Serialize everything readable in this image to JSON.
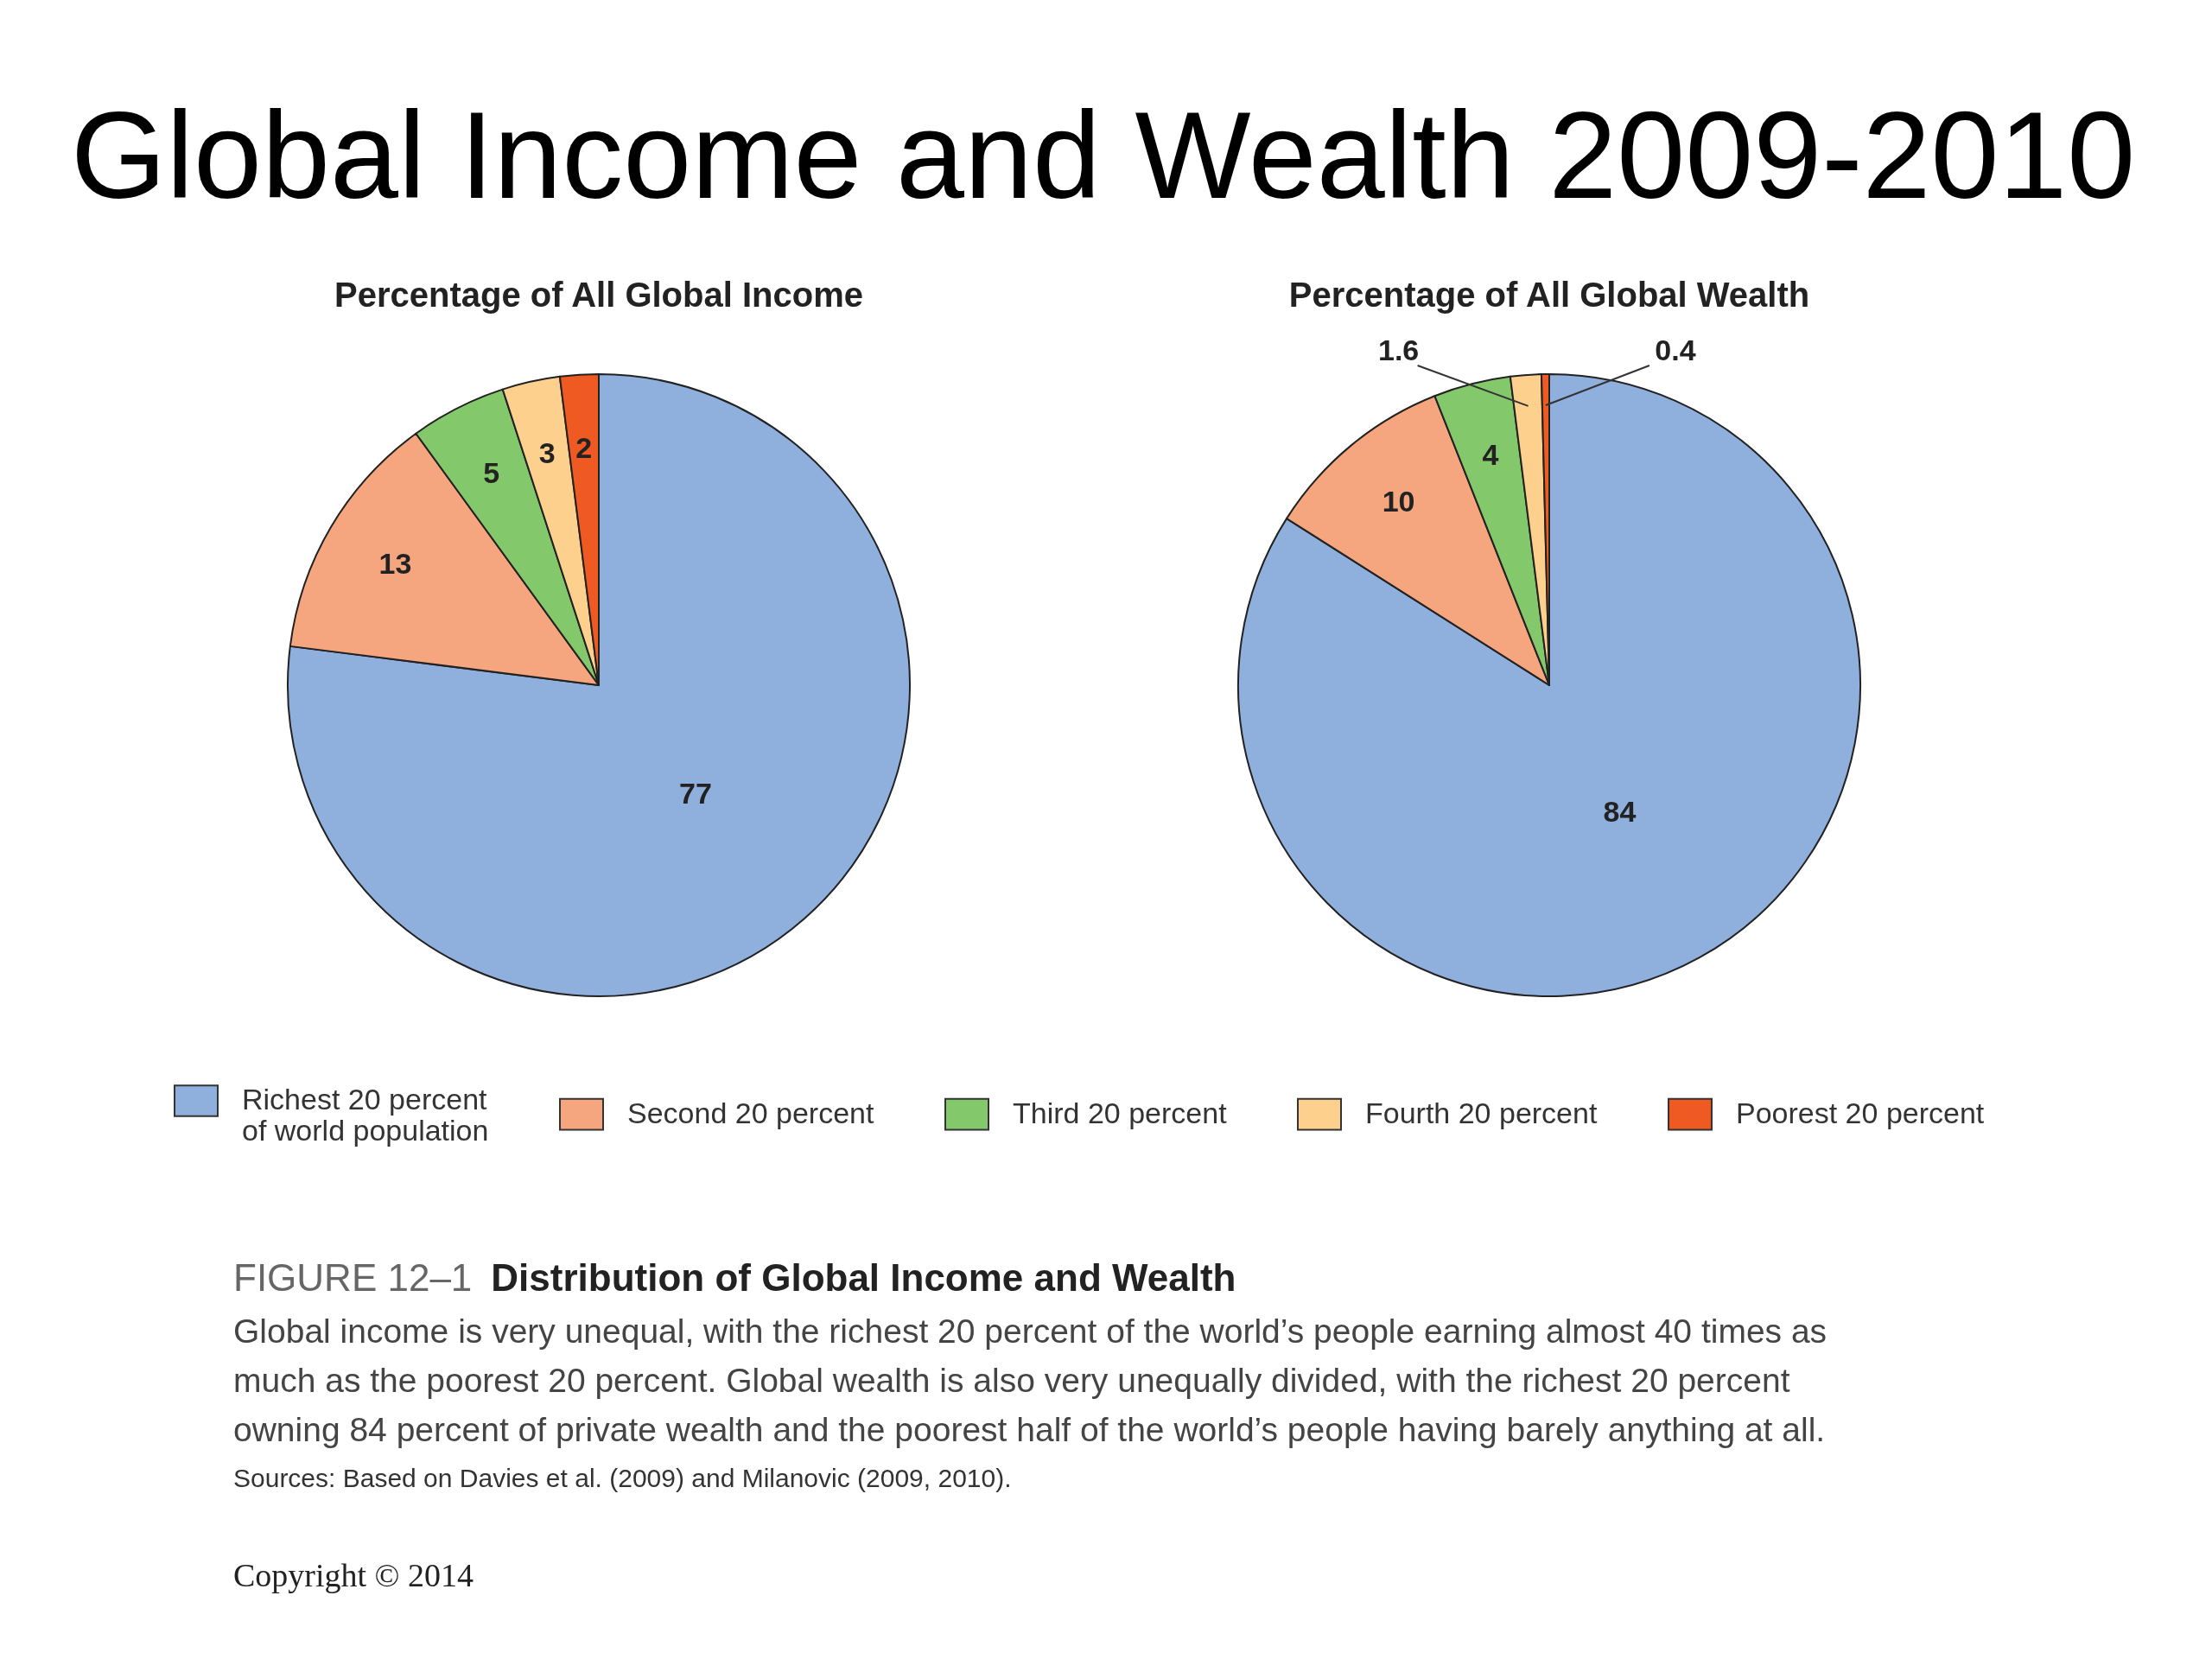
{
  "chart_data": {
    "type": "pie",
    "title": "Global Income and Wealth 2009-2010",
    "categories": [
      "Richest 20 percent of world population",
      "Second 20 percent",
      "Third 20 percent",
      "Fourth 20 percent",
      "Poorest 20 percent"
    ],
    "colors": [
      "#8fb0dc",
      "#f6a67e",
      "#84c86c",
      "#fdd08e",
      "#ef5a23"
    ],
    "series": [
      {
        "name": "Percentage of All Global Income",
        "values": [
          77,
          13,
          5,
          3,
          2
        ]
      },
      {
        "name": "Percentage of All Global Wealth",
        "values": [
          84,
          10,
          4,
          1.6,
          0.4
        ]
      }
    ],
    "data_labels": true,
    "legend": "bottom",
    "annotations": [
      "FIGURE 12–1",
      "Distribution of Global Income and Wealth",
      "Global income is very unequal, with the richest 20 percent of the world’s people earning almost 40 times as much as the poorest 20 percent. Global wealth is also very unequally divided, with the richest 20 percent owning 84 percent of private wealth and the poorest half of the world’s people having barely anything at all.",
      "Sources: Based on Davies et al. (2009) and Milanovic (2009, 2010).",
      "Copyright © 2014"
    ]
  }
}
